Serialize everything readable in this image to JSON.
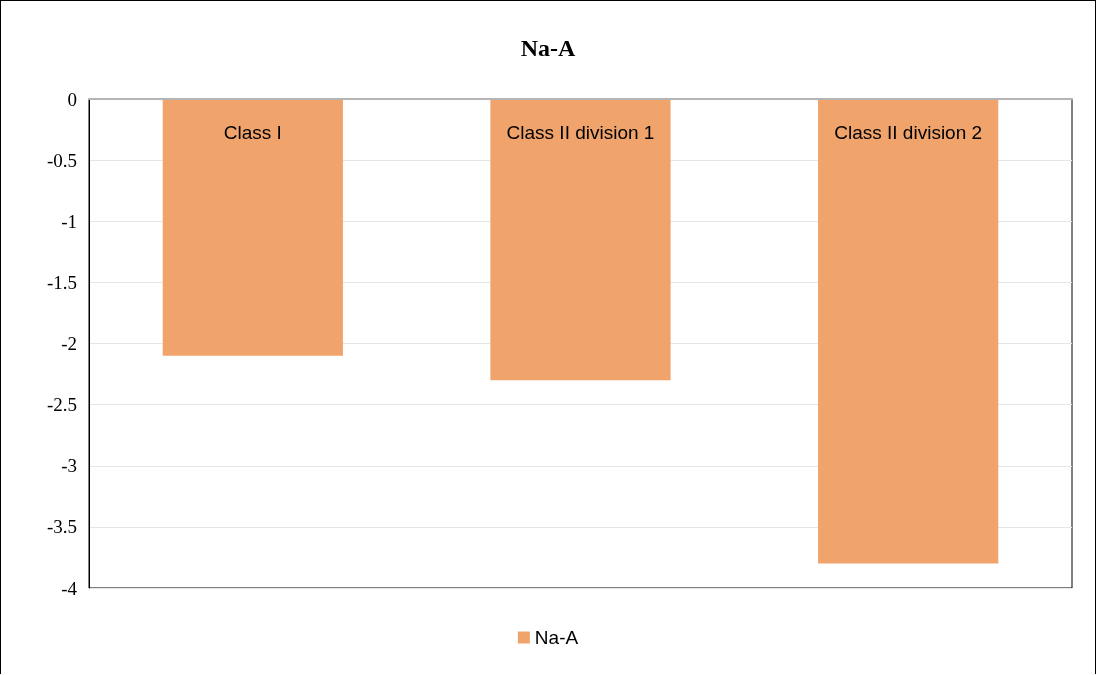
{
  "chart_data": {
    "type": "bar",
    "title": "Na-A",
    "categories": [
      "Class I",
      "Class II division 1",
      "Class II division 2"
    ],
    "series": [
      {
        "name": "Na-A",
        "color": "#f0a46c",
        "values": [
          -2.1,
          -2.3,
          -3.8
        ]
      }
    ],
    "ylim": [
      -4,
      0
    ],
    "yticks": [
      0,
      -0.5,
      -1,
      -1.5,
      -2,
      -2.5,
      -3,
      -3.5,
      -4
    ],
    "grid": "y",
    "legend": "bottom"
  }
}
